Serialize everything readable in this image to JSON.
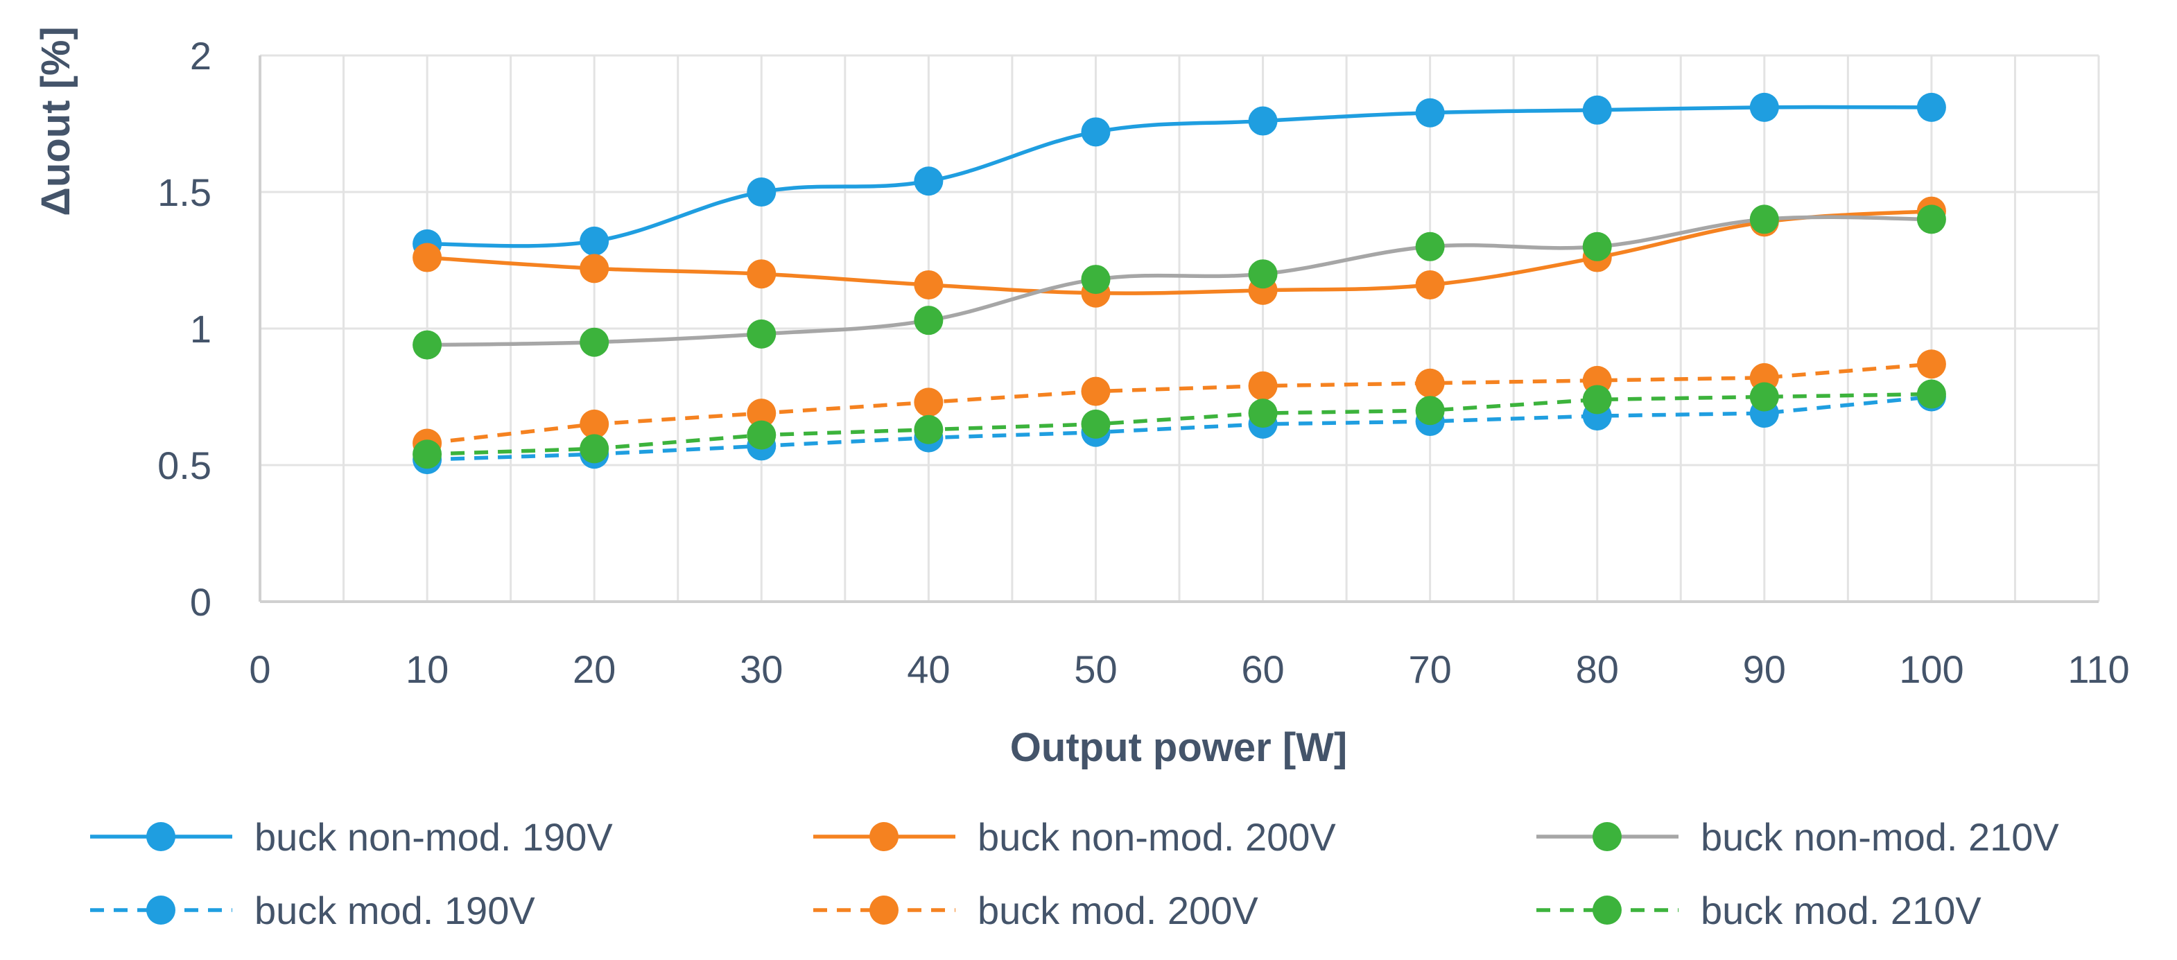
{
  "chart_data": {
    "type": "line",
    "title": "",
    "xlabel": "Output power [W]",
    "ylabel": "Δuout [%]",
    "xlim": [
      0,
      110
    ],
    "ylim": [
      0,
      2
    ],
    "xticks": [
      0,
      10,
      20,
      30,
      40,
      50,
      60,
      70,
      80,
      90,
      100,
      110
    ],
    "yticks": [
      0,
      0.5,
      1,
      1.5,
      2
    ],
    "grid": true,
    "legend_position": "bottom",
    "x": [
      10,
      20,
      30,
      40,
      50,
      60,
      70,
      80,
      90,
      100
    ],
    "series": [
      {
        "name": "buck non-mod. 190V",
        "color": "#1f9ee0",
        "line_color": "#1f9ee0",
        "style": "solid",
        "values": [
          1.31,
          1.32,
          1.5,
          1.54,
          1.72,
          1.76,
          1.79,
          1.8,
          1.81,
          1.81
        ]
      },
      {
        "name": "buck non-mod. 200V",
        "color": "#f58220",
        "line_color": "#f58220",
        "style": "solid",
        "values": [
          1.26,
          1.22,
          1.2,
          1.16,
          1.13,
          1.14,
          1.16,
          1.26,
          1.39,
          1.43
        ]
      },
      {
        "name": "buck non-mod. 210V",
        "color": "#3cb33c",
        "line_color": "#a6a6a6",
        "style": "solid",
        "values": [
          0.94,
          0.95,
          0.98,
          1.03,
          1.18,
          1.2,
          1.3,
          1.3,
          1.4,
          1.4
        ]
      },
      {
        "name": "buck mod. 190V",
        "color": "#1f9ee0",
        "line_color": "#1f9ee0",
        "style": "dashed",
        "values": [
          0.52,
          0.54,
          0.57,
          0.6,
          0.62,
          0.65,
          0.66,
          0.68,
          0.69,
          0.75
        ]
      },
      {
        "name": "buck mod. 200V",
        "color": "#f58220",
        "line_color": "#f58220",
        "style": "dashed",
        "values": [
          0.58,
          0.65,
          0.69,
          0.73,
          0.77,
          0.79,
          0.8,
          0.81,
          0.82,
          0.87
        ]
      },
      {
        "name": "buck mod. 210V",
        "color": "#3cb33c",
        "line_color": "#3cb33c",
        "style": "dashed",
        "values": [
          0.54,
          0.56,
          0.61,
          0.63,
          0.65,
          0.69,
          0.7,
          0.74,
          0.75,
          0.76
        ]
      }
    ]
  }
}
